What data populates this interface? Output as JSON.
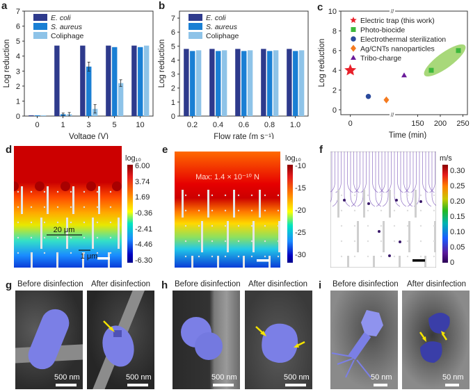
{
  "panel_labels": [
    "a",
    "b",
    "c",
    "d",
    "e",
    "f",
    "g",
    "h",
    "i"
  ],
  "chart_data": [
    {
      "id": "a",
      "type": "bar",
      "title": "",
      "xlabel": "Voltage (V)",
      "ylabel": "Log reduction",
      "ylim": [
        0,
        7
      ],
      "yticks": [
        0,
        1,
        2,
        3,
        4,
        5,
        6,
        7
      ],
      "categories": [
        "0",
        "1",
        "3",
        "5",
        "10"
      ],
      "legend_position": "top-left",
      "series": [
        {
          "name": "E. coli",
          "italic": true,
          "color": "#2e3a8c",
          "values": [
            0.05,
            4.7,
            4.7,
            4.7,
            4.7
          ],
          "errors": [
            0,
            0,
            0,
            0,
            0
          ]
        },
        {
          "name": "S. aureus",
          "italic": true,
          "color": "#1a7fd4",
          "values": [
            0.05,
            0.12,
            3.3,
            4.6,
            4.6
          ],
          "errors": [
            0,
            0.08,
            0.3,
            0,
            0
          ]
        },
        {
          "name": "Coliphage",
          "italic": false,
          "color": "#8ec3e8",
          "values": [
            0.05,
            0.12,
            0.48,
            2.2,
            4.7
          ],
          "errors": [
            0,
            0.12,
            0.28,
            0.22,
            0
          ]
        }
      ]
    },
    {
      "id": "b",
      "type": "bar",
      "title": "",
      "xlabel": "Flow rate (m s⁻¹)",
      "ylabel": "Log reduction",
      "ylim": [
        0,
        7.5
      ],
      "yticks": [
        0,
        1,
        2,
        3,
        4,
        5,
        6,
        7
      ],
      "categories": [
        "0.2",
        "0.4",
        "0.6",
        "0.8",
        "1.0"
      ],
      "legend_position": "top-left",
      "series": [
        {
          "name": "E. coli",
          "italic": true,
          "color": "#2e3a8c",
          "values": [
            4.8,
            4.8,
            4.8,
            4.8,
            4.8
          ]
        },
        {
          "name": "S. aureus",
          "italic": true,
          "color": "#1a7fd4",
          "values": [
            4.65,
            4.65,
            4.65,
            4.65,
            4.65
          ]
        },
        {
          "name": "Coliphage",
          "italic": false,
          "color": "#8ec3e8",
          "values": [
            4.7,
            4.7,
            4.7,
            4.7,
            4.7
          ]
        }
      ]
    },
    {
      "id": "c",
      "type": "scatter",
      "title": "",
      "xlabel": "Time (min)",
      "ylabel": "Log reduction",
      "ylim": [
        -0.5,
        10
      ],
      "yticks": [
        0,
        2,
        4,
        6,
        8,
        10
      ],
      "xticks": [
        "0",
        "150",
        "200",
        "250"
      ],
      "axis_break": true,
      "legend_position": "top-left",
      "series": [
        {
          "name": "Electric trap (this work)",
          "marker": "star",
          "color": "#e8202a",
          "points": [
            {
              "x": 0,
              "y": 4
            }
          ]
        },
        {
          "name": "Photo-biocide",
          "marker": "square",
          "color": "#3cb83c",
          "points": [
            {
              "x": 180,
              "y": 4
            },
            {
              "x": 240,
              "y": 6
            }
          ],
          "highlight": "#a8d87a"
        },
        {
          "name": "Electrothermal sterilization",
          "marker": "circle",
          "color": "#2b4a9c",
          "points": [
            {
              "x": 19,
              "y": 1.35
            }
          ]
        },
        {
          "name": "Ag/CNTs nanoparticles",
          "marker": "diamond",
          "color": "#f47a1f",
          "points": [
            {
              "x": 38,
              "y": 1.0
            }
          ]
        },
        {
          "name": "Tribo-charge",
          "marker": "triangle",
          "color": "#6a1b9a",
          "points": [
            {
              "x": 120,
              "y": 3.5
            }
          ]
        }
      ]
    },
    {
      "id": "d",
      "type": "heatmap",
      "colorbar_title": "log₁₀",
      "colorbar_ticks": [
        "6.00",
        "3.74",
        "1.69",
        "-0.36",
        "-2.41",
        "-4.46",
        "-6.30"
      ],
      "annotations": [
        "20 μm",
        "1 μm"
      ]
    },
    {
      "id": "e",
      "type": "heatmap",
      "colorbar_title": "log₁₀",
      "colorbar_ticks": [
        "-10",
        "-15",
        "-20",
        "-25",
        "-30"
      ],
      "annotations": [
        "Max: 1.4 × 10⁻¹⁰ N"
      ]
    },
    {
      "id": "f",
      "type": "heatmap",
      "colorbar_title": "m/s",
      "colorbar_ticks": [
        "0.30",
        "0.25",
        "0.20",
        "0.15",
        "0.10",
        "0.05",
        "0"
      ]
    }
  ],
  "micrographs": {
    "before_title": "Before disinfection",
    "after_title": "After disinfection",
    "g": {
      "before_scale": "500 nm",
      "after_scale": "500 nm"
    },
    "h": {
      "before_scale": "500 nm",
      "after_scale": "500 nm"
    },
    "i": {
      "before_scale": "50 nm",
      "after_scale": "50 nm"
    }
  },
  "colors": {
    "cell_highlight": "#7b7fe6",
    "arrow": "#f5e400"
  }
}
